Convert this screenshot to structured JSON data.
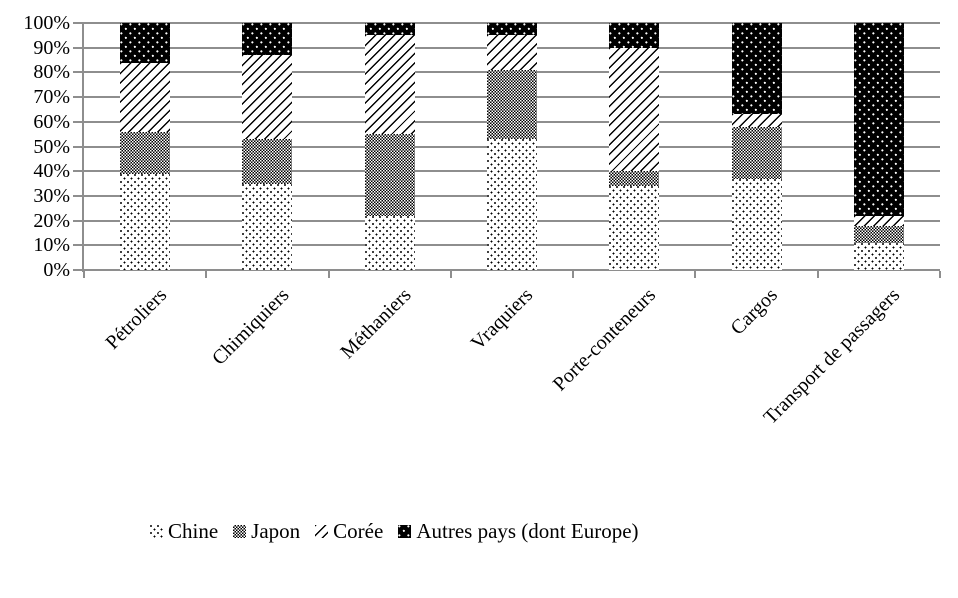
{
  "chart_data": {
    "type": "bar",
    "variant": "stacked-100-percent",
    "title": "",
    "xlabel": "",
    "ylabel": "",
    "grid": true,
    "legend_position": "bottom",
    "categories": [
      "Pétroliers",
      "Chimiquiers",
      "Méthaniers",
      "Vraquiers",
      "Porte-conteneurs",
      "Cargos",
      "Transport de passagers"
    ],
    "series": [
      {
        "name": "Chine",
        "pattern": "chine",
        "values": [
          39,
          35,
          22,
          53,
          34,
          37,
          11
        ]
      },
      {
        "name": "Japon",
        "pattern": "japon",
        "values": [
          17,
          18,
          33,
          28,
          6,
          21,
          7
        ]
      },
      {
        "name": "Corée",
        "pattern": "coree",
        "values": [
          28,
          34,
          40,
          14,
          50,
          5,
          4
        ]
      },
      {
        "name": "Autres pays (dont Europe)",
        "pattern": "autres",
        "values": [
          16,
          13,
          5,
          5,
          10,
          37,
          78
        ]
      }
    ],
    "y_axis": {
      "min": 0,
      "max": 100,
      "unit": "%",
      "ticks": [
        "0%",
        "10%",
        "20%",
        "30%",
        "40%",
        "50%",
        "60%",
        "70%",
        "80%",
        "90%",
        "100%"
      ]
    }
  },
  "colors": {
    "background": "#ffffff",
    "grid": "#8e8e8e",
    "axis": "#8e8e8e",
    "text": "#000000",
    "pattern_ink": "#000000"
  }
}
